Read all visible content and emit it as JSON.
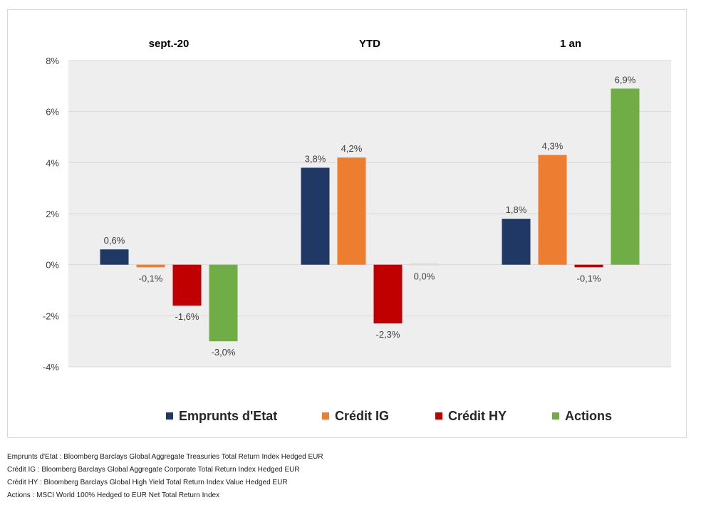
{
  "chart_data": {
    "type": "bar",
    "groups": [
      "sept.-20",
      "YTD",
      "1 an"
    ],
    "series": [
      {
        "name": "Emprunts d'Etat",
        "color": "#203864",
        "values": [
          0.6,
          3.8,
          1.8
        ],
        "labels": [
          "0,6%",
          "3,8%",
          "1,8%"
        ]
      },
      {
        "name": "Crédit IG",
        "color": "#ED7D31",
        "values": [
          -0.1,
          4.2,
          4.3
        ],
        "labels": [
          "-0,1%",
          "4,2%",
          "4,3%"
        ]
      },
      {
        "name": "Crédit HY",
        "color": "#C00000",
        "values": [
          -1.6,
          -2.3,
          -0.1
        ],
        "labels": [
          "-1,6%",
          "-2,3%",
          "-0,1%"
        ]
      },
      {
        "name": "Actions",
        "color": "#70AD47",
        "values": [
          -3.0,
          0.0,
          6.9
        ],
        "labels": [
          "-3,0%",
          "0,0%",
          "6,9%"
        ]
      }
    ],
    "ylim": [
      -4,
      8
    ],
    "yticks": [
      -4,
      -2,
      0,
      2,
      4,
      6,
      8
    ],
    "ytick_labels": [
      "-4%",
      "-2%",
      "0%",
      "2%",
      "4%",
      "6%",
      "8%"
    ],
    "grid": true,
    "plot_background": "#EEEEEE",
    "legend_position": "bottom"
  },
  "footnotes": [
    "Emprunts d'Etat : Bloomberg Barclays Global Aggregate Treasuries Total Return Index Hedged EUR",
    "Crédit IG : Bloomberg Barclays Global Aggregate Corporate Total Return Index Hedged EUR",
    "Crédit HY : Bloomberg Barclays Global High Yield Total Return Index Value Hedged EUR",
    "Actions : MSCI World 100% Hedged to EUR Net Total Return Index"
  ]
}
